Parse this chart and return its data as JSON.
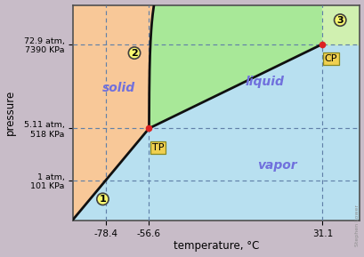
{
  "xlabel": "temperature, °C",
  "ylabel": "pressure",
  "bg_outer": "#c8bcc8",
  "bg_plot": "#b8dff0",
  "solid_color": "#f8c898",
  "liquid_color": "#a8e898",
  "vapor_color": "#b8e0f0",
  "supercritical_color": "#d0f0b0",
  "curve_color": "#101010",
  "point_color": "#dd2222",
  "dashed_color": "#6080a8",
  "label_solid": "solid",
  "label_liquid": "liquid",
  "label_vapor": "vapor",
  "label_color": "#7070dd",
  "tp_label": "TP",
  "cp_label": "CP",
  "label_1": "1",
  "label_2": "2",
  "label_3": "3",
  "tp_T": -56.6,
  "tp_P": 5.11,
  "cp_T": 31.1,
  "cp_P": 72.9,
  "atm_1": 1.0,
  "T_sublimation": -78.4,
  "xlim": [
    -95,
    50
  ],
  "ylim": [
    0.28,
    250
  ],
  "y_ticks": [
    1.0,
    5.11,
    72.9
  ],
  "y_tick_labels": [
    "1 atm,\n101 KPa",
    "5.11 atm,\n518 KPa",
    "72.9 atm,\n7390 KPa"
  ],
  "x_ticks": [
    -78.4,
    -56.6,
    31.1
  ],
  "figsize": [
    4.1,
    2.89
  ],
  "dpi": 100,
  "box_color": "#f0d050",
  "box_edge": "#888820",
  "circle_color": "#f8f870",
  "circle_edge": "#404040",
  "attribution": "Stephen Lower"
}
